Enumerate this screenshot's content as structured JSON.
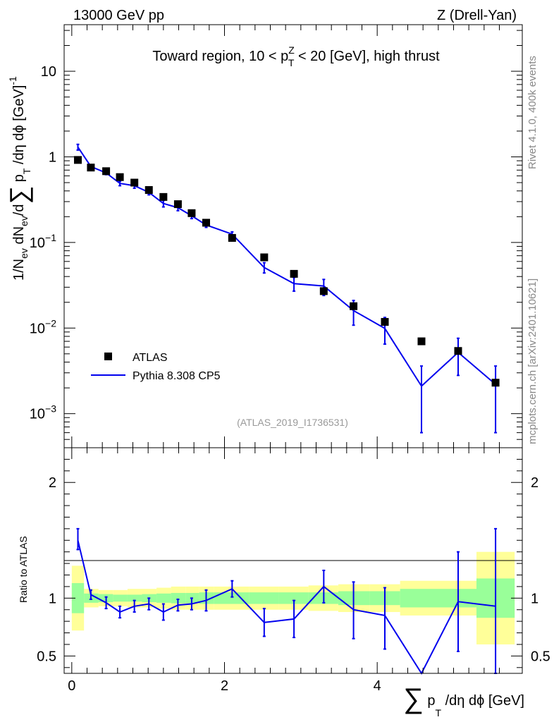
{
  "header": {
    "left": "13000 GeV pp",
    "right": "Z (Drell-Yan)"
  },
  "side_labels": {
    "rivet": "Rivet 4.1.0,  400k events",
    "mcplots": "mcplots.cern.ch [arXiv:2401.10621]"
  },
  "colors": {
    "mc_line": "#0000ee",
    "data_marker": "#000000",
    "band_inner": "#99ff99",
    "band_outer": "#ffff99",
    "ref_text": "#999999"
  },
  "chart_data": [
    {
      "name": "main",
      "type": "line",
      "yscale": "log",
      "title": "Toward region, 10 < p_T^Z < 20 [GeV], high thrust",
      "title_parts": {
        "pre": "Toward region, 10 < p",
        "sub": "T",
        "sup": "Z",
        "post": " < 20 [GeV], high thrust"
      },
      "ylabel": "1/N_ev dN_ev/d∑p_T/dη dϕ [GeV]^-1",
      "ylabel_parts": {
        "a": "1/N",
        "b": "ev",
        "c": " dN",
        "d": "ev",
        "e": "/d",
        "sum": "∑",
        "f": " p",
        "g": "T",
        "h": " /dη dϕ  [GeV]",
        "i": "-1"
      },
      "xlim": [
        -0.1,
        5.9
      ],
      "ylim": [
        0.0004,
        35
      ],
      "yticks": [
        {
          "value": 10,
          "base": "10",
          "exp": ""
        },
        {
          "value": 1,
          "base": "1",
          "exp": ""
        },
        {
          "value": 0.1,
          "base": "10",
          "exp": "−1"
        },
        {
          "value": 0.01,
          "base": "10",
          "exp": "−2"
        },
        {
          "value": 0.001,
          "base": "10",
          "exp": "−3"
        }
      ],
      "reference": "(ATLAS_2019_I1736531)",
      "legend": [
        {
          "label": "ATLAS",
          "kind": "marker"
        },
        {
          "label": "Pythia 8.308 CP5",
          "kind": "line"
        }
      ],
      "series": [
        {
          "name": "ATLAS",
          "x": [
            0.08,
            0.25,
            0.45,
            0.63,
            0.82,
            1.01,
            1.2,
            1.39,
            1.57,
            1.76,
            2.1,
            2.52,
            2.91,
            3.3,
            3.69,
            4.1,
            4.58,
            5.06,
            5.55
          ],
          "y": [
            0.92,
            0.75,
            0.68,
            0.58,
            0.5,
            0.41,
            0.34,
            0.28,
            0.22,
            0.17,
            0.113,
            0.067,
            0.043,
            0.027,
            0.018,
            0.0118,
            0.007,
            0.0054,
            0.0023
          ]
        },
        {
          "name": "Pythia 8.308 CP5",
          "x": [
            0.08,
            0.25,
            0.45,
            0.63,
            0.82,
            1.01,
            1.2,
            1.39,
            1.57,
            1.76,
            2.1,
            2.52,
            2.91,
            3.3,
            3.69,
            4.1,
            4.58,
            5.06,
            5.55
          ],
          "y": [
            1.3,
            0.77,
            0.65,
            0.49,
            0.46,
            0.385,
            0.285,
            0.255,
            0.205,
            0.16,
            0.125,
            0.051,
            0.033,
            0.031,
            0.016,
            0.0099,
            0.0021,
            0.0052,
            0.0022
          ],
          "ylow": [
            1.2,
            0.73,
            0.62,
            0.46,
            0.43,
            0.36,
            0.26,
            0.235,
            0.19,
            0.15,
            0.117,
            0.044,
            0.027,
            0.024,
            0.0108,
            0.0065,
            0.0006,
            0.0028,
            0.0006
          ],
          "yhigh": [
            1.4,
            0.81,
            0.68,
            0.52,
            0.49,
            0.41,
            0.31,
            0.275,
            0.22,
            0.17,
            0.133,
            0.058,
            0.039,
            0.037,
            0.021,
            0.0133,
            0.0036,
            0.0076,
            0.0036
          ]
        }
      ]
    },
    {
      "name": "ratio",
      "type": "line",
      "ylabel": "Ratio to ATLAS",
      "xlabel": "∑ p_T /dη dϕ [GeV]",
      "xlabel_parts": {
        "sum": "∑",
        "a": " p",
        "b": "T",
        "c": " /dη dϕ [GeV]"
      },
      "xlim": [
        -0.1,
        5.9
      ],
      "ylim": [
        0.35,
        2.3
      ],
      "xticks": [
        {
          "value": 0,
          "label": "0"
        },
        {
          "value": 2,
          "label": "2"
        },
        {
          "value": 4,
          "label": "4"
        }
      ],
      "yticks": [
        {
          "value": 2,
          "label": "2"
        },
        {
          "value": 1,
          "label": "1"
        },
        {
          "value": 0.5,
          "label": "0.5"
        }
      ],
      "band_edges": [
        0.0,
        0.16,
        0.35,
        0.54,
        0.73,
        0.92,
        1.11,
        1.3,
        1.49,
        1.67,
        1.86,
        2.32,
        2.71,
        3.1,
        3.49,
        3.9,
        4.3,
        4.82,
        5.3,
        5.8
      ],
      "band_inner": [
        [
          0.87,
          1.13
        ],
        [
          0.96,
          1.04
        ],
        [
          0.965,
          1.035
        ],
        [
          0.97,
          1.03
        ],
        [
          0.97,
          1.03
        ],
        [
          0.965,
          1.035
        ],
        [
          0.96,
          1.04
        ],
        [
          0.955,
          1.045
        ],
        [
          0.955,
          1.045
        ],
        [
          0.95,
          1.05
        ],
        [
          0.95,
          1.05
        ],
        [
          0.95,
          1.05
        ],
        [
          0.95,
          1.05
        ],
        [
          0.95,
          1.05
        ],
        [
          0.94,
          1.06
        ],
        [
          0.94,
          1.06
        ],
        [
          0.92,
          1.08
        ],
        [
          0.92,
          1.08
        ],
        [
          0.83,
          1.17
        ]
      ],
      "band_outer": [
        [
          0.72,
          1.28
        ],
        [
          0.92,
          1.08
        ],
        [
          0.93,
          1.07
        ],
        [
          0.93,
          1.07
        ],
        [
          0.92,
          1.08
        ],
        [
          0.92,
          1.08
        ],
        [
          0.91,
          1.09
        ],
        [
          0.9,
          1.1
        ],
        [
          0.9,
          1.1
        ],
        [
          0.9,
          1.1
        ],
        [
          0.9,
          1.1
        ],
        [
          0.9,
          1.1
        ],
        [
          0.9,
          1.1
        ],
        [
          0.89,
          1.11
        ],
        [
          0.88,
          1.12
        ],
        [
          0.88,
          1.12
        ],
        [
          0.85,
          1.15
        ],
        [
          0.85,
          1.15
        ],
        [
          0.6,
          1.4
        ]
      ],
      "series": [
        {
          "name": "Pythia 8.308 CP5",
          "x": [
            0.08,
            0.25,
            0.45,
            0.63,
            0.82,
            1.01,
            1.2,
            1.39,
            1.57,
            1.76,
            2.1,
            2.52,
            2.91,
            3.3,
            3.69,
            4.1,
            4.58,
            5.06,
            5.55
          ],
          "y": [
            1.5,
            1.03,
            0.96,
            0.88,
            0.93,
            0.95,
            0.88,
            0.94,
            0.95,
            0.98,
            1.08,
            0.79,
            0.82,
            1.1,
            0.9,
            0.85,
            0.3,
            0.97,
            0.93
          ],
          "ylow": [
            1.42,
            0.99,
            0.91,
            0.83,
            0.88,
            0.9,
            0.81,
            0.89,
            0.9,
            0.89,
            1.01,
            0.67,
            0.66,
            0.96,
            0.65,
            0.56,
            0.3,
            0.54,
            0.3
          ],
          "yhigh": [
            1.6,
            1.07,
            1.01,
            0.93,
            0.98,
            1.0,
            0.95,
            0.99,
            1.0,
            1.07,
            1.15,
            0.91,
            0.98,
            1.24,
            1.14,
            1.09,
            0.3,
            1.4,
            1.6
          ]
        }
      ]
    }
  ]
}
